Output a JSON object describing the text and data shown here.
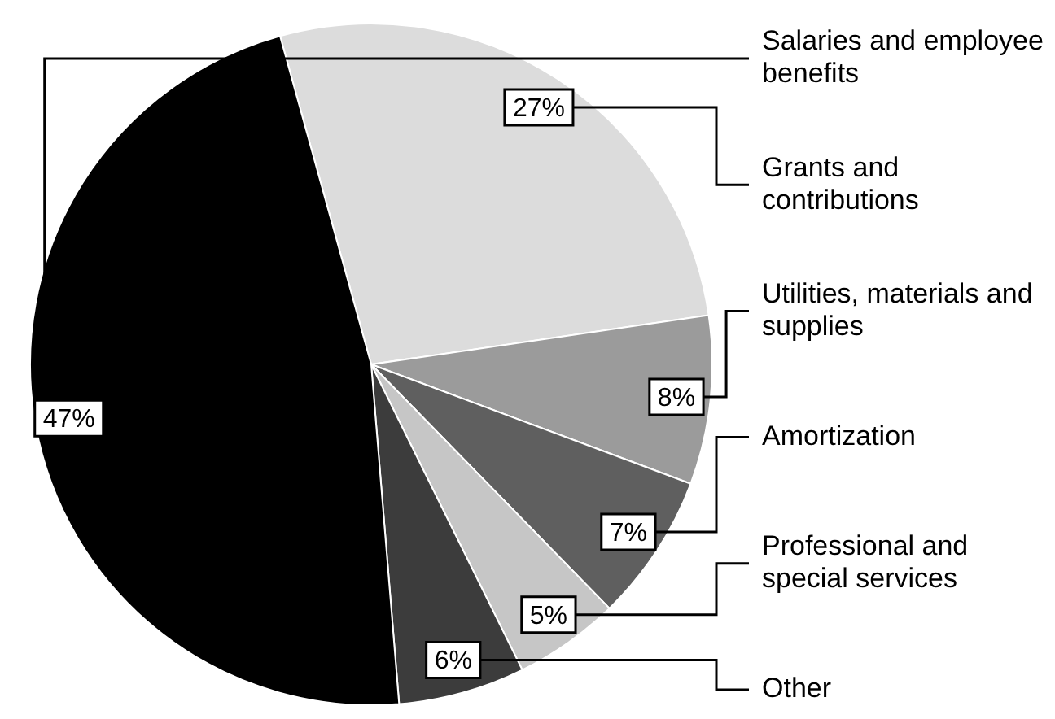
{
  "chart_data": {
    "type": "pie",
    "categories": [
      "Grants and contributions",
      "Utilities, materials and supplies",
      "Amortization",
      "Professional and special services",
      "Other",
      "Salaries and employee benefits"
    ],
    "values": [
      27,
      8,
      7,
      5,
      6,
      47
    ],
    "value_labels": [
      "27%",
      "8%",
      "7%",
      "5%",
      "6%",
      "47%"
    ],
    "colors": [
      "#dcdcdc",
      "#9b9b9b",
      "#5f5f5f",
      "#c6c6c6",
      "#3c3c3c",
      "#000000"
    ],
    "legend": false
  }
}
